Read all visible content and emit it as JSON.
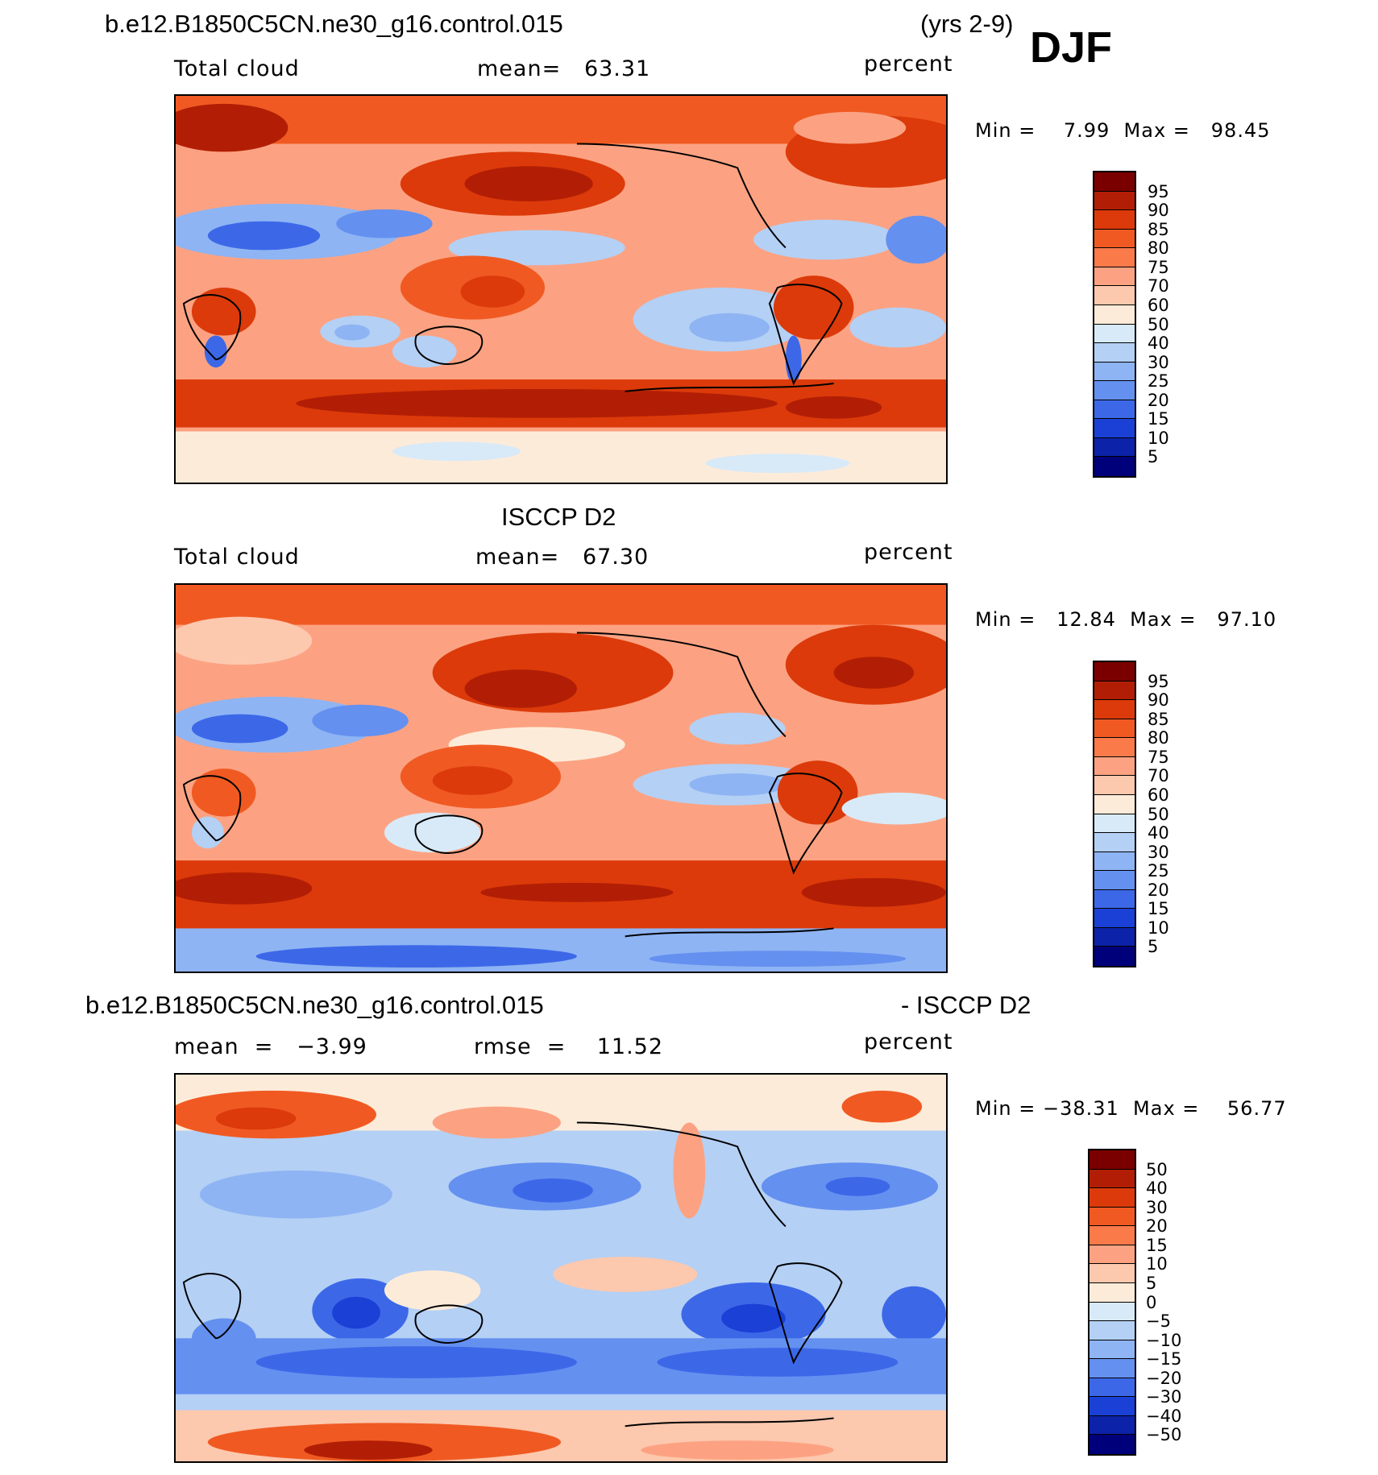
{
  "header": {
    "case_name": "b.e12.B1850C5CN.ne30_g16.control.015",
    "years": "(yrs 2-9)",
    "season": "DJF"
  },
  "panels": [
    {
      "title": "",
      "variable": "Total cloud",
      "stat1": "mean=   63.31",
      "units": "percent",
      "minmax": "Min =    7.99  Max =   98.45",
      "min": 7.99,
      "max": 98.45,
      "mean": 63.31
    },
    {
      "title": "ISCCP D2",
      "variable": "Total cloud",
      "stat1": "mean=   67.30",
      "units": "percent",
      "minmax": "Min =   12.84  Max =   97.10",
      "min": 12.84,
      "max": 97.1,
      "mean": 67.3
    },
    {
      "title_left": "b.e12.B1850C5CN.ne30_g16.control.015",
      "title_right": "- ISCCP D2",
      "stat0": "mean  =   −3.99",
      "stat1": "rmse  =    11.52",
      "units": "percent",
      "minmax": "Min = −38.31  Max =    56.77",
      "min": -38.31,
      "max": 56.77,
      "mean": -3.99,
      "rmse": 11.52
    }
  ],
  "colorbars": {
    "abs_labels": [
      "95",
      "90",
      "85",
      "80",
      "75",
      "70",
      "60",
      "50",
      "40",
      "30",
      "25",
      "20",
      "15",
      "10",
      "5"
    ],
    "abs_colors": [
      "#7a0000",
      "#b21e05",
      "#dc3a0a",
      "#f05a22",
      "#fa7a4a",
      "#fca282",
      "#fcc8ae",
      "#fdebd9",
      "#d8eaf8",
      "#b4d0f5",
      "#8eb4f3",
      "#6490f0",
      "#3c68e8",
      "#1a40d6",
      "#0c22a8",
      "#00007a"
    ],
    "diff_labels": [
      "50",
      "40",
      "30",
      "20",
      "15",
      "10",
      "5",
      "0",
      "−5",
      "−10",
      "−15",
      "−20",
      "−30",
      "−40",
      "−50"
    ],
    "diff_colors": [
      "#7a0000",
      "#b21e05",
      "#dc3a0a",
      "#f05a22",
      "#fa7a4a",
      "#fca282",
      "#fcc8ae",
      "#fdebd9",
      "#d8eaf8",
      "#b4d0f5",
      "#8eb4f3",
      "#6490f0",
      "#3c68e8",
      "#1a40d6",
      "#0c22a8",
      "#00007a"
    ]
  }
}
